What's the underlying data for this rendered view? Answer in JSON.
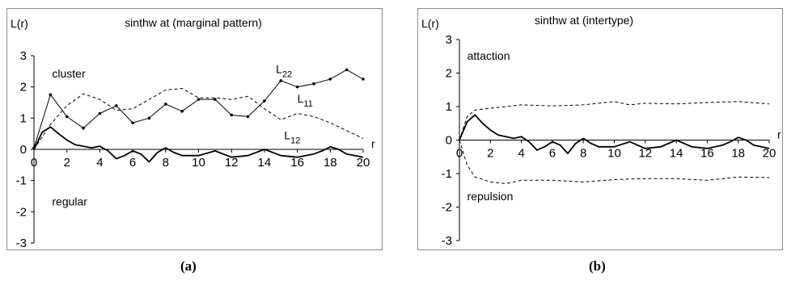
{
  "captions": {
    "a": "(a)",
    "b": "(b)"
  },
  "chart_data": [
    {
      "type": "line",
      "title": "sinthw at (marginal pattern)",
      "ylabel": "L(r)",
      "xlabel": "r",
      "xlim": [
        0,
        20
      ],
      "ylim": [
        -3,
        3
      ],
      "xticks": [
        0,
        2,
        4,
        6,
        8,
        10,
        12,
        14,
        16,
        18,
        20
      ],
      "yticks": [
        -3,
        -2,
        -1,
        0,
        1,
        2,
        3
      ],
      "annotations": [
        {
          "text": "cluster",
          "x": 1.1,
          "y": 2.3
        },
        {
          "text": "regular",
          "x": 1.1,
          "y": -1.8
        }
      ],
      "series": [
        {
          "name": "L22",
          "name_main": "L",
          "name_sub": "22",
          "style": "solid-dots",
          "label_at": [
            14.7,
            2.45
          ],
          "x": [
            0,
            1,
            2,
            3,
            4,
            5,
            6,
            7,
            8,
            9,
            10,
            11,
            12,
            13,
            14,
            15,
            16,
            17,
            18,
            19,
            20
          ],
          "y": [
            0.05,
            1.75,
            1.05,
            0.68,
            1.15,
            1.4,
            0.85,
            1.0,
            1.45,
            1.22,
            1.6,
            1.6,
            1.1,
            1.05,
            1.55,
            2.2,
            2.0,
            2.1,
            2.25,
            2.55,
            2.25
          ]
        },
        {
          "name": "L11",
          "name_main": "L",
          "name_sub": "11",
          "style": "dashed",
          "label_at": [
            16.0,
            1.5
          ],
          "x": [
            0,
            1,
            2,
            3,
            4,
            5,
            6,
            7,
            8,
            9,
            10,
            11,
            12,
            13,
            14,
            15,
            16,
            17,
            18,
            19,
            20
          ],
          "y": [
            0.0,
            0.8,
            1.4,
            1.78,
            1.6,
            1.25,
            1.3,
            1.6,
            1.9,
            1.95,
            1.65,
            1.65,
            1.6,
            1.7,
            1.3,
            0.95,
            1.15,
            1.05,
            0.85,
            0.6,
            0.35
          ]
        },
        {
          "name": "L12",
          "name_main": "L",
          "name_sub": "12",
          "style": "solid",
          "label_at": [
            15.2,
            0.32
          ],
          "x": [
            0,
            0.5,
            1,
            1.5,
            2,
            2.5,
            3,
            3.5,
            4,
            4.5,
            5,
            5.5,
            6,
            6.5,
            7,
            7.5,
            8,
            8.5,
            9,
            9.5,
            10,
            11,
            12,
            13,
            14,
            15,
            16,
            17,
            17.5,
            18,
            18.5,
            19,
            20
          ],
          "y": [
            0.0,
            0.55,
            0.72,
            0.5,
            0.3,
            0.15,
            0.1,
            0.05,
            0.1,
            -0.05,
            -0.3,
            -0.2,
            -0.05,
            -0.15,
            -0.4,
            -0.1,
            0.05,
            -0.1,
            -0.2,
            -0.2,
            -0.2,
            -0.05,
            -0.25,
            -0.2,
            0.0,
            -0.2,
            -0.25,
            -0.15,
            -0.05,
            0.08,
            0.0,
            -0.15,
            -0.25
          ]
        }
      ]
    },
    {
      "type": "line",
      "title": "sinthw at (intertype)",
      "ylabel": "L(r)",
      "xlabel": "r",
      "xlim": [
        0,
        20
      ],
      "ylim": [
        -3,
        3
      ],
      "xticks": [
        0,
        2,
        4,
        6,
        8,
        10,
        12,
        14,
        16,
        18,
        20
      ],
      "yticks": [
        -3,
        -2,
        -1,
        0,
        1,
        2,
        3
      ],
      "annotations": [
        {
          "text": "attaction",
          "x": 0.5,
          "y": 2.4
        },
        {
          "text": "repulsion",
          "x": 0.5,
          "y": -1.8
        }
      ],
      "series": [
        {
          "style": "dashed",
          "x": [
            0,
            0.5,
            1,
            2,
            4,
            6,
            8,
            10,
            11,
            12,
            14,
            16,
            18,
            20
          ],
          "y": [
            0.0,
            0.7,
            0.9,
            0.95,
            1.05,
            1.02,
            1.05,
            1.15,
            1.05,
            1.1,
            1.08,
            1.12,
            1.15,
            1.08
          ]
        },
        {
          "style": "dashed",
          "x": [
            0,
            0.5,
            1,
            2,
            3,
            4,
            6,
            8,
            10,
            12,
            14,
            16,
            18,
            20
          ],
          "y": [
            0.0,
            -0.75,
            -1.1,
            -1.25,
            -1.3,
            -1.2,
            -1.2,
            -1.25,
            -1.18,
            -1.15,
            -1.15,
            -1.2,
            -1.1,
            -1.12
          ]
        },
        {
          "style": "solid",
          "x": [
            0,
            0.5,
            1,
            1.5,
            2,
            2.5,
            3,
            3.5,
            4,
            4.5,
            5,
            5.5,
            6,
            6.5,
            7,
            7.5,
            8,
            8.5,
            9,
            9.5,
            10,
            11,
            12,
            13,
            14,
            15,
            16,
            17,
            17.5,
            18,
            18.5,
            19,
            20
          ],
          "y": [
            0.0,
            0.55,
            0.75,
            0.5,
            0.3,
            0.15,
            0.1,
            0.05,
            0.1,
            -0.05,
            -0.3,
            -0.2,
            -0.05,
            -0.15,
            -0.4,
            -0.1,
            0.05,
            -0.1,
            -0.2,
            -0.2,
            -0.2,
            -0.05,
            -0.25,
            -0.2,
            0.0,
            -0.2,
            -0.25,
            -0.15,
            -0.05,
            0.08,
            0.0,
            -0.15,
            -0.25
          ]
        }
      ]
    }
  ]
}
